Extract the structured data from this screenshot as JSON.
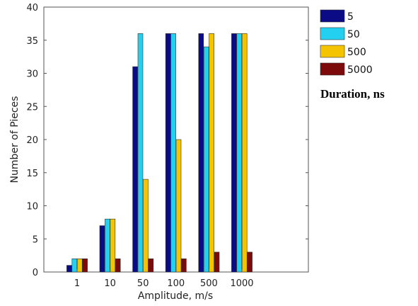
{
  "chart_data": {
    "type": "bar",
    "categories": [
      "1",
      "10",
      "50",
      "100",
      "500",
      "1000"
    ],
    "series": [
      {
        "name": "5",
        "color": "#0b0b86",
        "values": [
          1,
          7,
          31,
          36,
          36,
          36
        ]
      },
      {
        "name": "50",
        "color": "#23d0f0",
        "values": [
          2,
          8,
          36,
          36,
          34,
          36
        ]
      },
      {
        "name": "500",
        "color": "#f5c400",
        "values": [
          2,
          8,
          14,
          20,
          36,
          36
        ]
      },
      {
        "name": "5000",
        "color": "#7d0a0a",
        "values": [
          2,
          2,
          2,
          2,
          3,
          3
        ]
      }
    ],
    "xlabel": "Amplitude, m/s",
    "ylabel": "Number of Pieces",
    "ylim": [
      0,
      40
    ],
    "yticks": [
      0,
      5,
      10,
      15,
      20,
      25,
      30,
      35,
      40
    ],
    "legend_title": "Duration, ns",
    "legend_position": "outside-right",
    "grid": false
  }
}
